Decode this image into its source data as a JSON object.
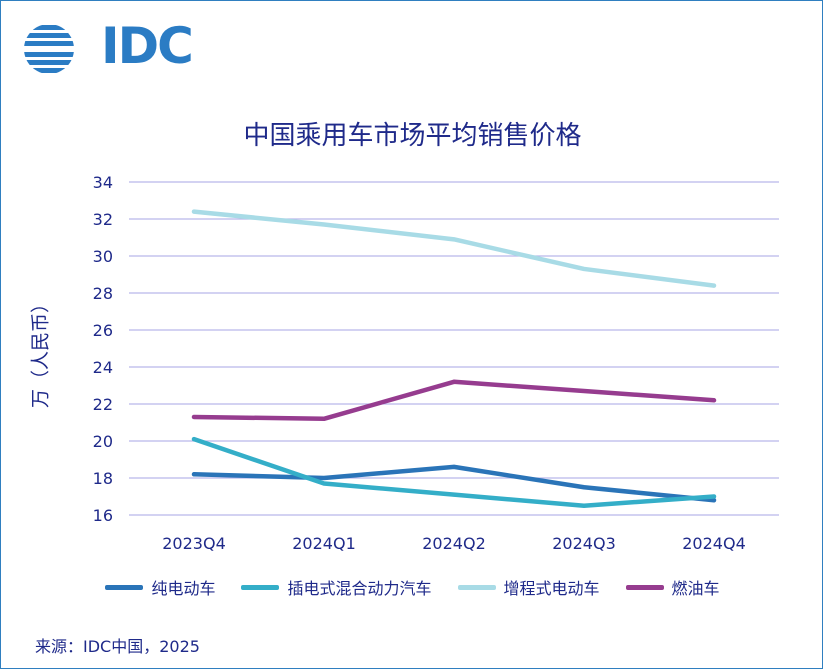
{
  "logo": {
    "text": "IDC"
  },
  "chart_data": {
    "type": "line",
    "title": "中国乘用车市场平均销售价格",
    "xlabel": "",
    "ylabel": "万（人民币）",
    "categories": [
      "2023Q4",
      "2024Q1",
      "2024Q2",
      "2024Q3",
      "2024Q4"
    ],
    "ylim": [
      16,
      34
    ],
    "yticks": [
      16,
      18,
      20,
      22,
      24,
      26,
      28,
      30,
      32,
      34
    ],
    "grid": true,
    "legend": "bottom",
    "series": [
      {
        "name": "纯电动车",
        "color": "#2a74b8",
        "values": [
          18.2,
          18.0,
          18.6,
          17.5,
          16.8
        ]
      },
      {
        "name": "插电式混合动力汽车",
        "color": "#34aec8",
        "values": [
          20.1,
          17.7,
          17.1,
          16.5,
          17.0
        ]
      },
      {
        "name": "增程式电动车",
        "color": "#a8dbe6",
        "values": [
          32.4,
          31.7,
          30.9,
          29.3,
          28.4
        ]
      },
      {
        "name": "燃油车",
        "color": "#963c8f",
        "values": [
          21.3,
          21.2,
          23.2,
          22.7,
          22.2
        ]
      }
    ],
    "gridColor": "#b9b6ea"
  },
  "source": "来源：IDC中国，2025"
}
